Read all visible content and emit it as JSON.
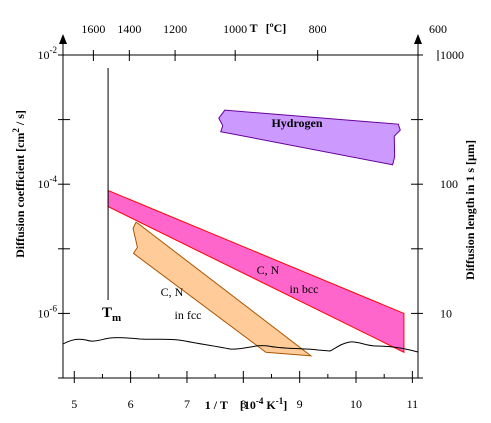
{
  "chart_data": {
    "type": "area",
    "x_axis_bottom": {
      "label": "1 / T",
      "unit": "[10",
      "unit_exp": "-4",
      "unit_rest": " K",
      "unit_exp2": "-1",
      "unit_close": "]",
      "range": [
        4.8,
        11.1
      ],
      "ticks": [
        5,
        6,
        7,
        8,
        9,
        10,
        11
      ]
    },
    "x_axis_top": {
      "label": "T",
      "unit": "[ºC]",
      "ticks": [
        1600,
        1400,
        1200,
        1000,
        800,
        600
      ]
    },
    "y_axis_left": {
      "label": "Diffusion coefficient [cm",
      "label_exp": "2",
      "label_rest": " / s]",
      "scale": "log",
      "range": [
        1e-07,
        0.01
      ],
      "tick_labels": [
        {
          "base": "10",
          "exp": "-2",
          "value": 0.01
        },
        {
          "base": "10",
          "exp": "-4",
          "value": 0.0001
        },
        {
          "base": "10",
          "exp": "-6",
          "value": 1e-06
        }
      ]
    },
    "y_axis_right": {
      "label": "Diffusion length in 1 s  [µm]",
      "tick_labels": [
        "1000",
        "100",
        "10"
      ]
    },
    "series": [
      {
        "name": "Hydrogen",
        "color": "#cc99ff",
        "upper": [
          [
            7.6,
            0.0014
          ],
          [
            10.75,
            0.00085
          ]
        ],
        "lower": [
          [
            7.6,
            0.00065
          ],
          [
            10.65,
            0.0002
          ]
        ]
      },
      {
        "name": "C, N",
        "name_line2": "in bcc",
        "color": "#ff66cc",
        "upper": [
          [
            5.6,
            8e-05
          ],
          [
            10.85,
            1e-06
          ]
        ],
        "lower": [
          [
            5.6,
            4.5e-05
          ],
          [
            10.85,
            2.5e-07
          ]
        ]
      },
      {
        "name": "C, N",
        "name_line2": "in fcc",
        "color": "#ffcc99",
        "upper": [
          [
            6.15,
            2.4e-05
          ],
          [
            9.2,
            2.2e-07
          ]
        ],
        "lower": [
          [
            6.05,
            8.5e-06
          ],
          [
            8.4,
            2.5e-07
          ]
        ]
      }
    ],
    "annotations": [
      {
        "text": "T",
        "sub": "m",
        "x": 5.6
      }
    ]
  }
}
